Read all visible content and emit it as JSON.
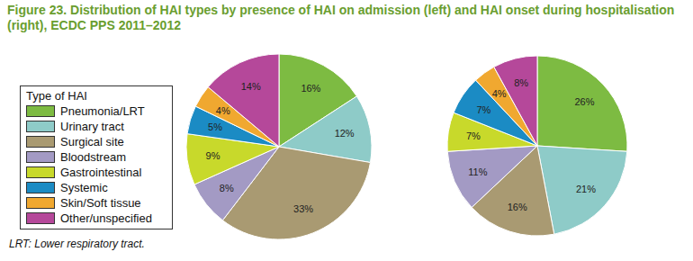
{
  "title": "Figure 23. Distribution of HAI types by presence of HAI on admission (left) and HAI onset during hospitalisation (right), ECDC PPS 2011–2012",
  "legend_title": "Type of HAI",
  "note": "LRT: Lower respiratory tract.",
  "chart_data": [
    {
      "type": "pie",
      "categories": [
        "Pneumonia/LRT",
        "Urinary tract",
        "Surgical site",
        "Bloodstream",
        "Gastrointestinal",
        "Systemic",
        "Skin/Soft tissue",
        "Other/unspecified"
      ],
      "values": [
        16,
        12,
        33,
        8,
        9,
        5,
        4,
        14
      ],
      "value_labels": [
        "16%",
        "12%",
        "33%",
        "8%",
        "9%",
        "5%",
        "4%",
        "14%"
      ],
      "colors": [
        "#7dbb42",
        "#8ecbc8",
        "#a99a72",
        "#a39ac4",
        "#c8d92b",
        "#1b8bc4",
        "#f0a830",
        "#b5489a"
      ],
      "data_labels": true,
      "legend": "left"
    },
    {
      "type": "pie",
      "categories": [
        "Pneumonia/LRT",
        "Urinary tract",
        "Surgical site",
        "Bloodstream",
        "Gastrointestinal",
        "Systemic",
        "Skin/Soft tissue",
        "Other/unspecified"
      ],
      "values": [
        26,
        21,
        16,
        11,
        7,
        7,
        4,
        8
      ],
      "value_labels": [
        "26%",
        "21%",
        "16%",
        "11%",
        "7%",
        "7%",
        "4%",
        "8%"
      ],
      "colors": [
        "#7dbb42",
        "#8ecbc8",
        "#a99a72",
        "#a39ac4",
        "#c8d92b",
        "#1b8bc4",
        "#f0a830",
        "#b5489a"
      ],
      "data_labels": true
    }
  ]
}
